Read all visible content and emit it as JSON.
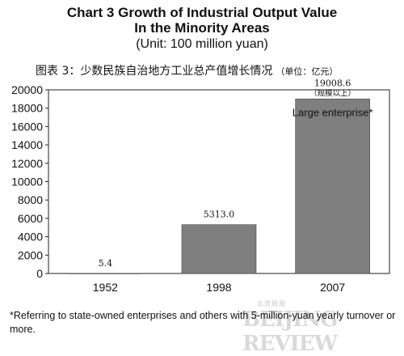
{
  "header": {
    "title_en_line1": "Chart 3  Growth of Industrial Output Value",
    "title_en_line2": "In the Minority Areas",
    "unit_en": "(Unit: 100 million yuan)",
    "title_cn": "图表 3：少数民族自治地方工业总产值增长情况",
    "unit_cn": "（单位：亿元）"
  },
  "chart_data": {
    "type": "bar",
    "categories": [
      "1952",
      "1998",
      "2007"
    ],
    "values": [
      5.4,
      5313.0,
      19008.6
    ],
    "value_labels": [
      "5.4",
      "5313.0",
      "19008.6"
    ],
    "bar_note_cn": "（规模以上）",
    "annotation": "Large enterprise*",
    "ylim": [
      0,
      20000
    ],
    "yticks": [
      0,
      2000,
      4000,
      6000,
      8000,
      10000,
      12000,
      14000,
      16000,
      18000,
      20000
    ],
    "ytick_labels": [
      "0",
      "2000",
      "4000",
      "6000",
      "8000",
      "10000",
      "12000",
      "14000",
      "16000",
      "18000",
      "20000"
    ],
    "grid": false,
    "bar_color": "#7f7f7f"
  },
  "footnote": "*Referring to state-owned enterprises and others with 5-million-yuan yearly turnover or more.",
  "watermark": {
    "top": "北京周报",
    "main": "BEIJING REVIEW"
  }
}
